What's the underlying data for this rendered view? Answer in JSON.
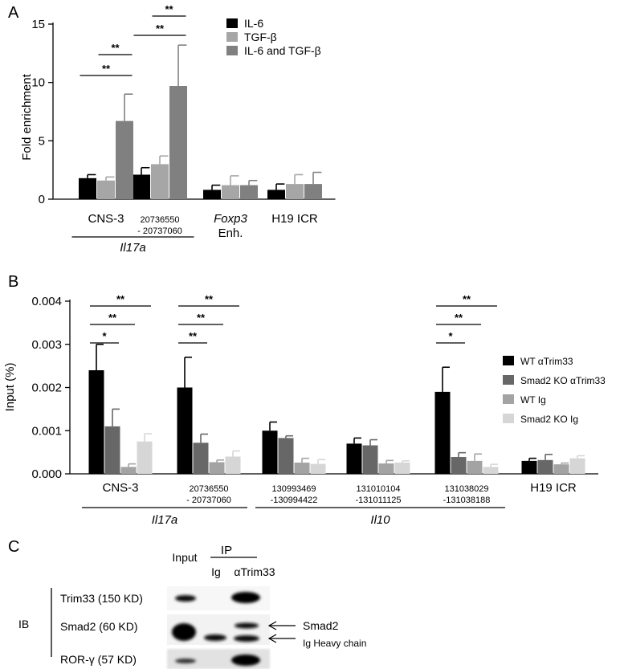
{
  "chart_data": [
    {
      "type": "bar",
      "panel_label": "A",
      "ylabel": "Fold enrichment",
      "ylim": [
        0,
        15
      ],
      "yticks": [
        0,
        5,
        10,
        15
      ],
      "categories": [
        {
          "lines": [
            "CNS-3"
          ],
          "small": false
        },
        {
          "lines": [
            "20736550",
            "- 20737060"
          ],
          "small": true
        },
        {
          "lines": [
            "Foxp3",
            "Enh."
          ],
          "small": false,
          "italic_first": true
        },
        {
          "lines": [
            "H19 ICR"
          ],
          "small": false
        }
      ],
      "group_labels": [
        {
          "label": "Il17a",
          "from": 0,
          "to": 1
        }
      ],
      "series": [
        {
          "name": "IL-6",
          "color": "#000000",
          "values": [
            1.8,
            2.1,
            0.8,
            0.8
          ],
          "errors": [
            0.3,
            0.6,
            0.4,
            0.5
          ]
        },
        {
          "name": "TGF-β",
          "color": "#a6a6a6",
          "values": [
            1.6,
            3.0,
            1.2,
            1.3
          ],
          "errors": [
            0.3,
            0.7,
            0.8,
            0.8
          ]
        },
        {
          "name": "IL-6 and TGF-β",
          "color": "#808080",
          "values": [
            6.7,
            9.7,
            1.2,
            1.3
          ],
          "errors": [
            2.3,
            3.5,
            0.4,
            1.0
          ]
        }
      ],
      "significance": [
        {
          "label": "**",
          "from": [
            0,
            0
          ],
          "to": [
            0,
            2
          ]
        },
        {
          "label": "**",
          "from": [
            0,
            1
          ],
          "to": [
            0,
            2
          ]
        },
        {
          "label": "**",
          "from": [
            1,
            0
          ],
          "to": [
            1,
            2
          ]
        },
        {
          "label": "**",
          "from": [
            1,
            1
          ],
          "to": [
            1,
            2
          ]
        }
      ],
      "legend_position": "top-right"
    },
    {
      "type": "bar",
      "panel_label": "B",
      "ylabel": "Input (%)",
      "ylim": [
        0,
        0.004
      ],
      "yticks": [
        "0.000",
        "0.001",
        "0.002",
        "0.003",
        "0.004"
      ],
      "categories": [
        {
          "lines": [
            "CNS-3"
          ],
          "small": false
        },
        {
          "lines": [
            "20736550",
            "- 20737060"
          ],
          "small": true
        },
        {
          "lines": [
            "130993469",
            "-130994422"
          ],
          "small": true
        },
        {
          "lines": [
            "131010104",
            "-131011125"
          ],
          "small": true
        },
        {
          "lines": [
            "131038029",
            "-131038188"
          ],
          "small": true
        },
        {
          "lines": [
            "H19 ICR"
          ],
          "small": false
        }
      ],
      "group_labels": [
        {
          "label": "Il17a",
          "from": 0,
          "to": 1
        },
        {
          "label": "Il10",
          "from": 2,
          "to": 4
        }
      ],
      "series": [
        {
          "name": "WT αTrim33",
          "color": "#000000",
          "values": [
            0.0024,
            0.002,
            0.001,
            0.0007,
            0.0019,
            0.0003
          ],
          "errors": [
            0.0006,
            0.0007,
            0.0002,
            0.00013,
            0.00057,
            6e-05
          ]
        },
        {
          "name": "Smad2 KO αTrim33",
          "color": "#676767",
          "values": [
            0.0011,
            0.00072,
            0.00083,
            0.00066,
            0.00039,
            0.00032
          ],
          "errors": [
            0.0004,
            0.0002,
            5e-05,
            0.00013,
            0.0001,
            0.00013
          ]
        },
        {
          "name": "WT Ig",
          "color": "#a3a3a3",
          "values": [
            0.00016,
            0.00027,
            0.00026,
            0.00024,
            0.0003,
            0.00022
          ],
          "errors": [
            7e-05,
            5e-05,
            0.0001,
            7e-05,
            0.00016,
            3e-05
          ]
        },
        {
          "name": "Smad2 KO Ig",
          "color": "#d6d6d6",
          "values": [
            0.00075,
            0.0004,
            0.00023,
            0.00026,
            0.00016,
            0.00036
          ],
          "errors": [
            0.00018,
            0.00013,
            0.0001,
            4e-05,
            6e-05,
            6e-05
          ]
        }
      ],
      "significance": [
        {
          "label": "*",
          "from": [
            0,
            0
          ],
          "to": [
            0,
            1
          ]
        },
        {
          "label": "**",
          "from": [
            0,
            0
          ],
          "to": [
            0,
            2
          ]
        },
        {
          "label": "**",
          "from": [
            0,
            0
          ],
          "to": [
            0,
            3
          ]
        },
        {
          "label": "**",
          "from": [
            1,
            0
          ],
          "to": [
            1,
            1
          ]
        },
        {
          "label": "**",
          "from": [
            1,
            0
          ],
          "to": [
            1,
            2
          ]
        },
        {
          "label": "**",
          "from": [
            1,
            0
          ],
          "to": [
            1,
            3
          ]
        },
        {
          "label": "*",
          "from": [
            4,
            0
          ],
          "to": [
            4,
            1
          ]
        },
        {
          "label": "**",
          "from": [
            4,
            0
          ],
          "to": [
            4,
            2
          ]
        },
        {
          "label": "**",
          "from": [
            4,
            0
          ],
          "to": [
            4,
            3
          ]
        }
      ],
      "legend_position": "right"
    }
  ],
  "panel_c": {
    "panel_label": "C",
    "ip_label": "IP",
    "lane_labels": [
      "Input",
      "Ig",
      "αTrim33"
    ],
    "ib_label": "IB",
    "rows": [
      {
        "label": "Trim33 (150 KD)"
      },
      {
        "label": "Smad2 (60 KD)"
      },
      {
        "label": "ROR-γ (57 KD)"
      }
    ],
    "arrows": [
      {
        "label": "Smad2"
      },
      {
        "label": "Ig Heavy chain"
      }
    ]
  }
}
